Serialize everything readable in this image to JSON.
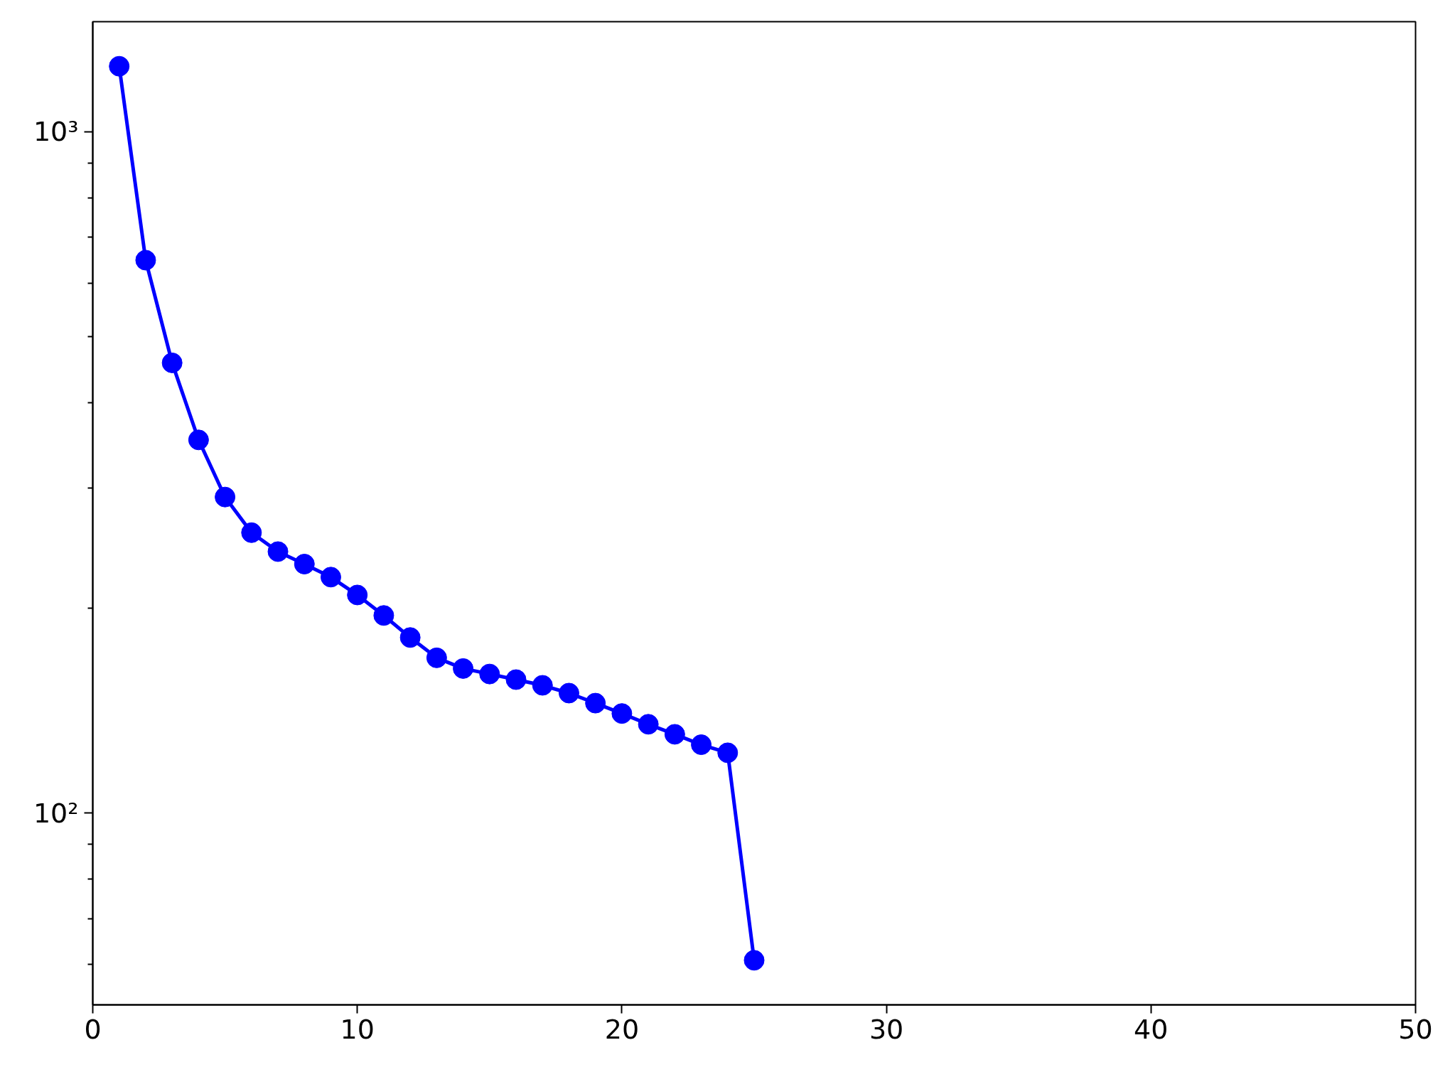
{
  "chart_data": {
    "type": "line",
    "x": [
      1,
      2,
      3,
      4,
      5,
      6,
      7,
      8,
      9,
      10,
      11,
      12,
      13,
      14,
      15,
      16,
      17,
      18,
      19,
      20,
      21,
      22,
      23,
      24,
      25
    ],
    "series": [
      {
        "color": "#0000ff",
        "values": [
          1248,
          648,
          458,
          353,
          291,
          258,
          242,
          232,
          222,
          209,
          195,
          181,
          169,
          163,
          160,
          157,
          154,
          150,
          145,
          140,
          135,
          130.5,
          126,
          122.6,
          60.8
        ]
      }
    ],
    "xlim": [
      0,
      50
    ],
    "xticks": [
      0,
      10,
      20,
      30,
      40,
      50
    ],
    "ylim": [
      52.3,
      1451
    ],
    "yticks": [
      {
        "value": 60,
        "label": null
      },
      {
        "value": 70,
        "label": null
      },
      {
        "value": 80,
        "label": null
      },
      {
        "value": 90,
        "label": null
      },
      {
        "value": 100,
        "label": "10²"
      },
      {
        "value": 200,
        "label": null
      },
      {
        "value": 300,
        "label": null
      },
      {
        "value": 400,
        "label": null
      },
      {
        "value": 500,
        "label": null
      },
      {
        "value": 600,
        "label": null
      },
      {
        "value": 700,
        "label": null
      },
      {
        "value": 800,
        "label": null
      },
      {
        "value": 900,
        "label": null
      },
      {
        "value": 1000,
        "label": "10³"
      }
    ],
    "log": true,
    "marker": "circle",
    "line_style": "solid"
  }
}
